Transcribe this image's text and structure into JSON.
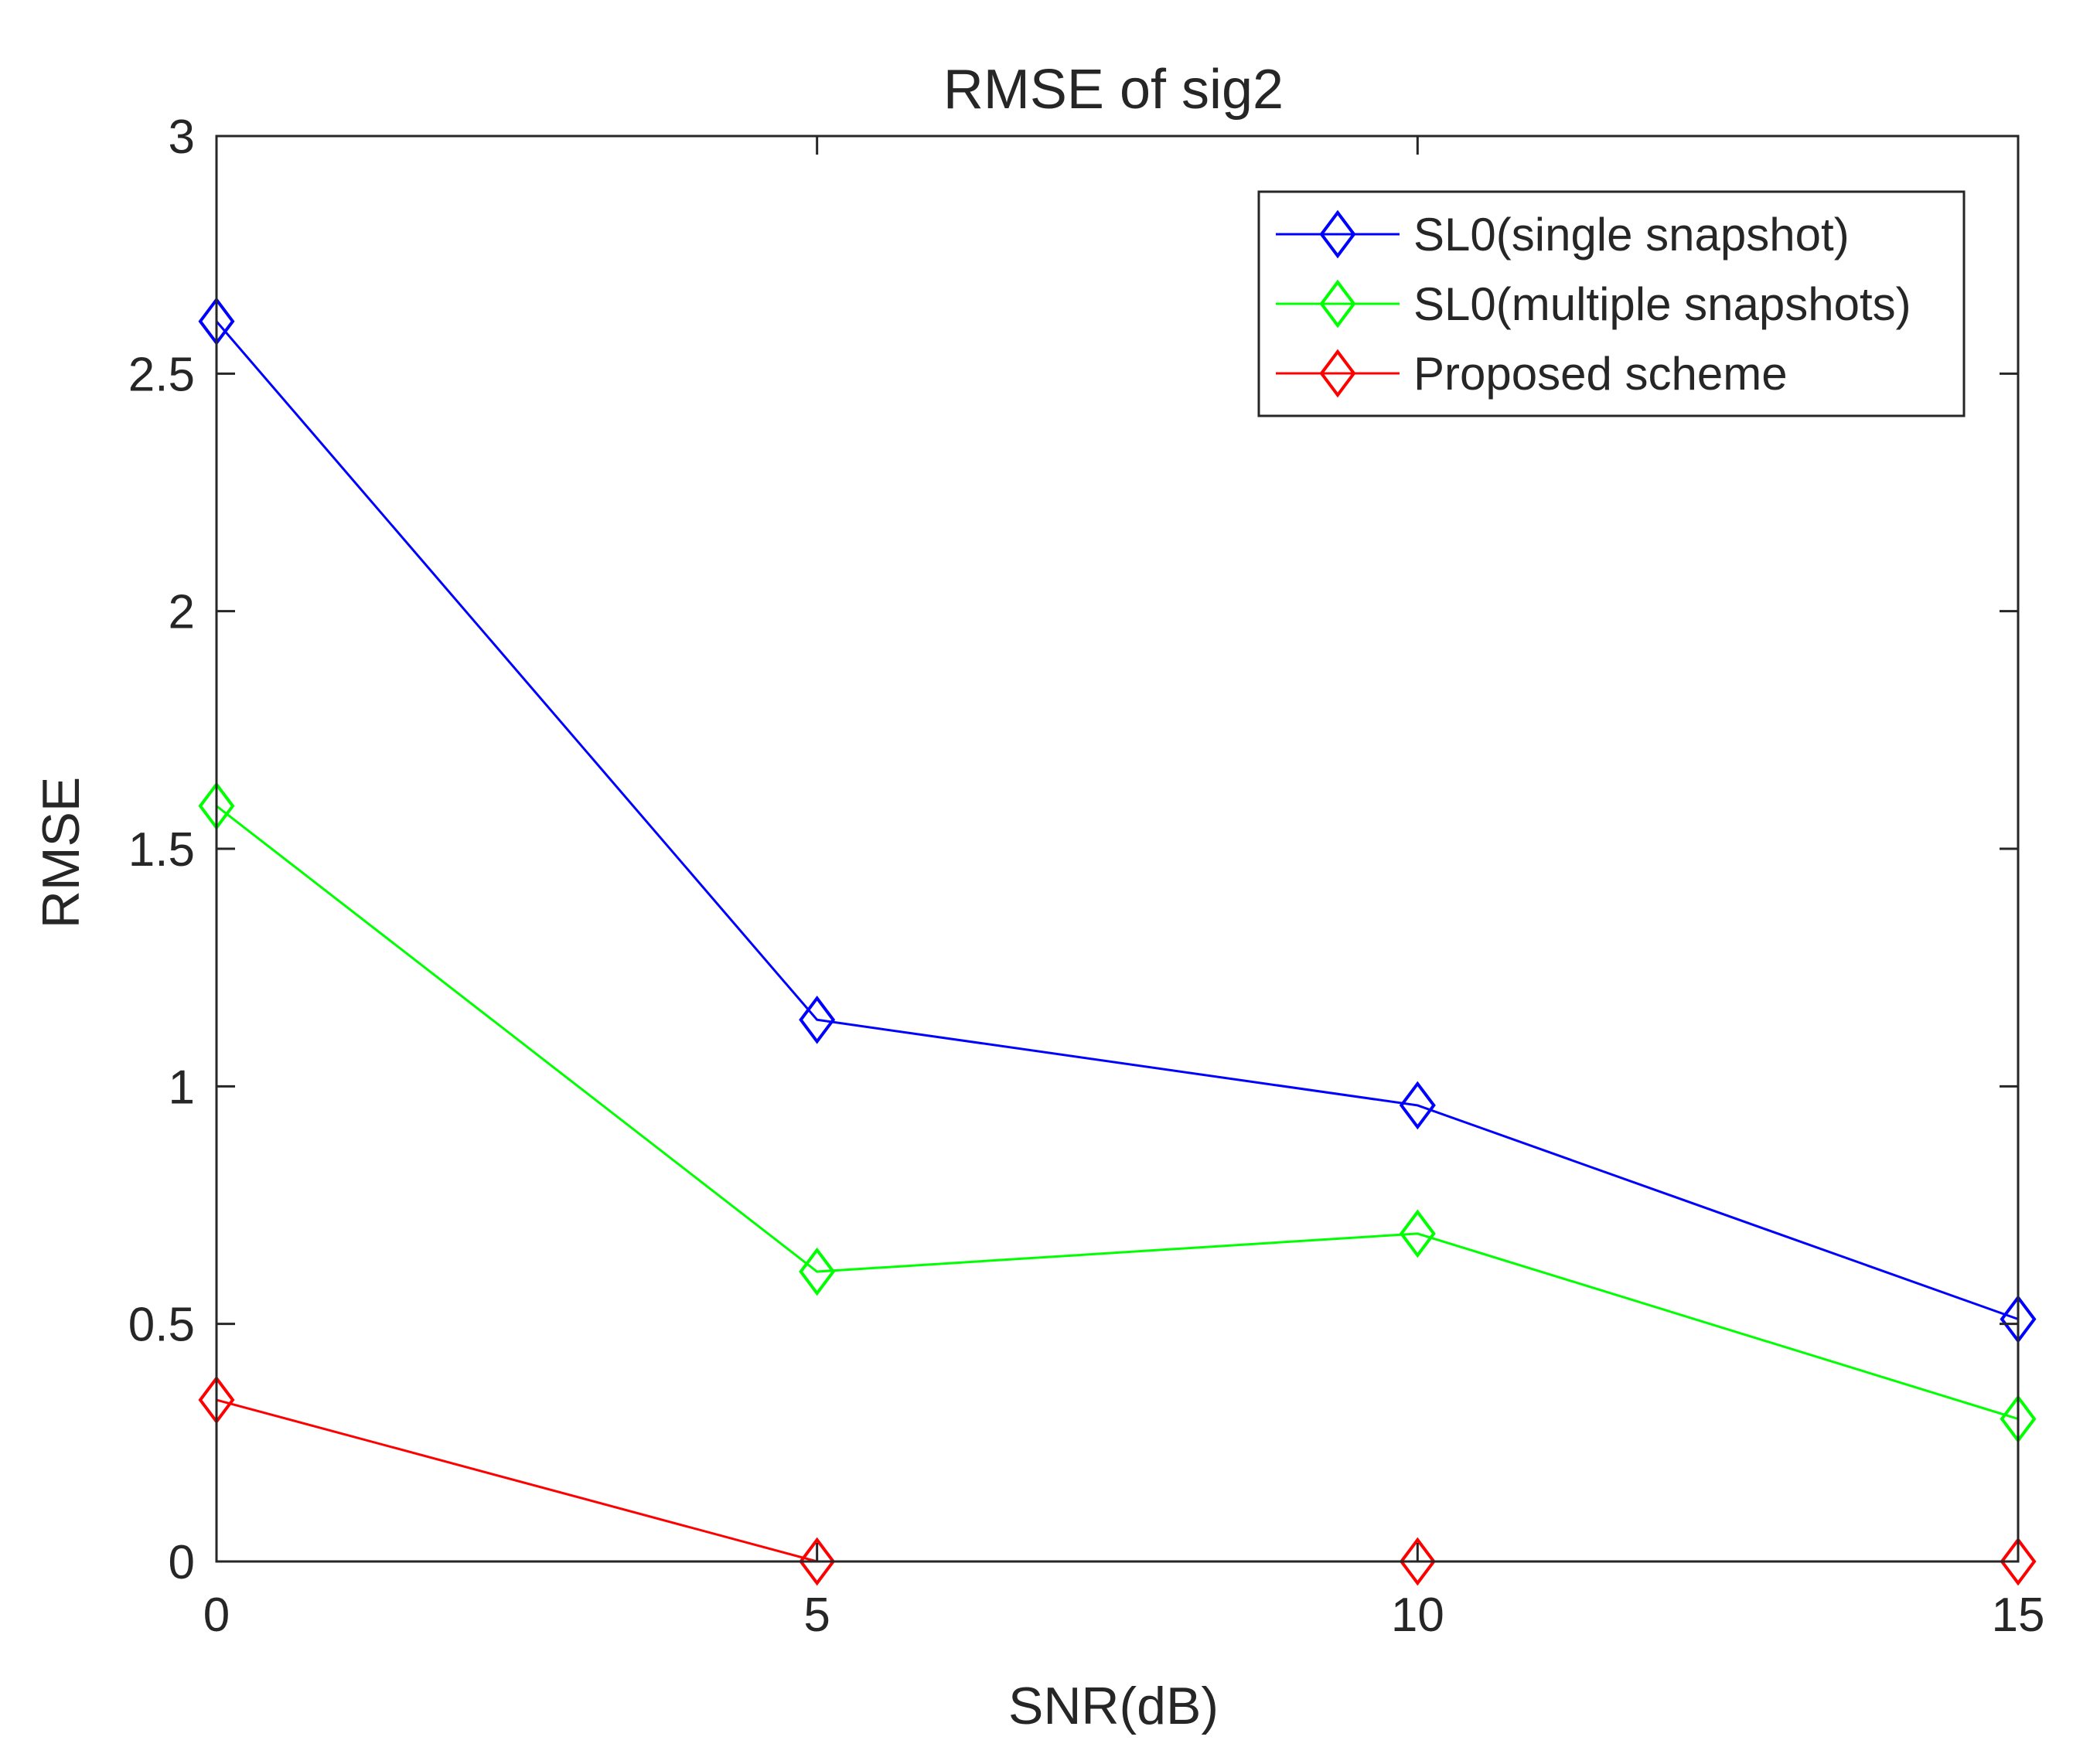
{
  "chart_data": {
    "type": "line",
    "title": "RMSE of sig2",
    "xlabel": "SNR(dB)",
    "ylabel": "RMSE",
    "xlim": [
      0,
      15
    ],
    "ylim": [
      0,
      3
    ],
    "xticks": [
      0,
      5,
      10,
      15
    ],
    "xtick_labels": [
      "0",
      "5",
      "10",
      "15"
    ],
    "yticks": [
      0,
      0.5,
      1,
      1.5,
      2,
      2.5,
      3
    ],
    "ytick_labels": [
      "0",
      "0.5",
      "1",
      "1.5",
      "2",
      "2.5",
      "3"
    ],
    "grid": false,
    "legend_position": "top-right",
    "x": [
      0,
      5,
      10,
      15
    ],
    "series": [
      {
        "name": "SL0(single snapshot)",
        "color": "#0000ff",
        "marker": "diamond",
        "values": [
          2.61,
          1.14,
          0.96,
          0.51
        ]
      },
      {
        "name": "SL0(multiple snapshots)",
        "color": "#00ff00",
        "marker": "diamond",
        "values": [
          1.59,
          0.61,
          0.69,
          0.3
        ]
      },
      {
        "name": "Proposed scheme",
        "color": "#ff0000",
        "marker": "diamond",
        "values": [
          0.34,
          0.0,
          0.0,
          0.0
        ]
      }
    ]
  }
}
